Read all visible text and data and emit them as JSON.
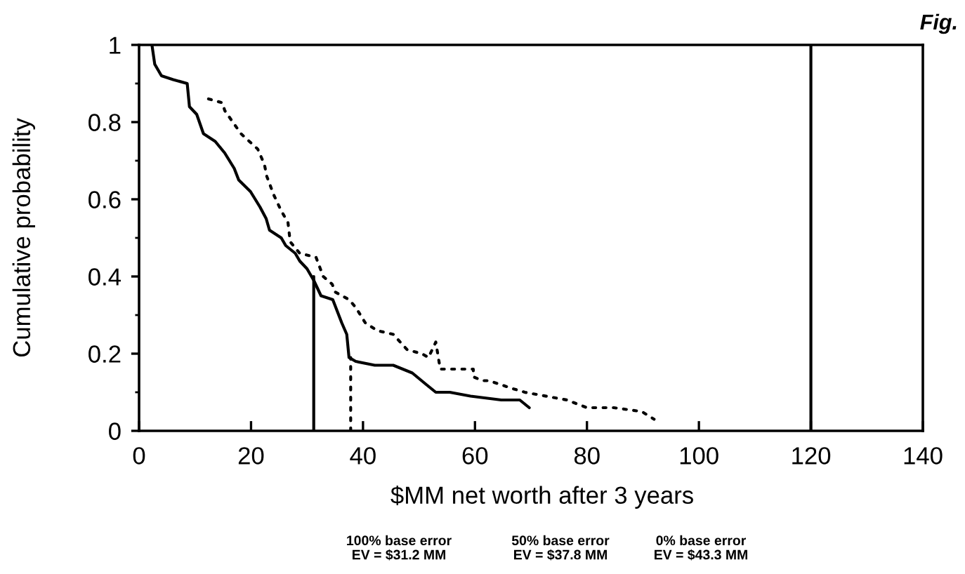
{
  "chart_data": {
    "type": "line",
    "title": "Fig.",
    "xlabel": "$MM net worth after 3 years",
    "ylabel": "Cumulative probability",
    "xlim": [
      0,
      140
    ],
    "ylim": [
      0,
      1
    ],
    "xticks": [
      0,
      20,
      40,
      60,
      80,
      100,
      120,
      140
    ],
    "yticks": [
      0,
      {
        "value": 0.1,
        "label": null
      },
      0.2,
      {
        "value": 0.3,
        "label": null
      },
      0.4,
      {
        "value": 0.5,
        "label": null
      },
      0.6,
      {
        "value": 0.7,
        "label": null
      },
      0.8,
      {
        "value": 0.9,
        "label": null
      },
      1
    ],
    "series": [
      {
        "color": "#000000",
        "line_style": "solid",
        "x": [
          2.3,
          2.8,
          4.0,
          6.1,
          8.6,
          9.0,
          10.3,
          11.5,
          13.6,
          15.3,
          17.0,
          17.8,
          19.9,
          21.6,
          22.7,
          23.3,
          25.4,
          26.2,
          27.9,
          28.7,
          30.0,
          31.2,
          32.5,
          34.6,
          36.2,
          37.1,
          37.5,
          38.7,
          42.1,
          45.4,
          48.8,
          51.3,
          53.0,
          55.5,
          59.2,
          64.7,
          68.0,
          69.7
        ],
        "values": [
          1.0,
          0.95,
          0.92,
          0.91,
          0.9,
          0.84,
          0.82,
          0.77,
          0.75,
          0.72,
          0.68,
          0.65,
          0.62,
          0.58,
          0.55,
          0.52,
          0.5,
          0.48,
          0.46,
          0.44,
          0.42,
          0.39,
          0.35,
          0.34,
          0.28,
          0.25,
          0.19,
          0.18,
          0.17,
          0.17,
          0.15,
          0.12,
          0.1,
          0.1,
          0.09,
          0.08,
          0.08,
          0.06
        ]
      },
      {
        "color": "#000000",
        "line_style": "dotted",
        "x": [
          12.4,
          14.9,
          15.3,
          18.2,
          21.2,
          22.4,
          22.8,
          24.1,
          25.4,
          26.6,
          27.0,
          28.7,
          31.6,
          32.9,
          34.5,
          35.0,
          37.5,
          38.7,
          40.4,
          42.5,
          45.4,
          47.9,
          50.5,
          51.7,
          53.0,
          53.8,
          59.7,
          59.7,
          61.3,
          62.5,
          66.6,
          68.9,
          76.4,
          80.0,
          84.8,
          89.8,
          92.0
        ],
        "values": [
          0.86,
          0.85,
          0.83,
          0.77,
          0.73,
          0.69,
          0.66,
          0.61,
          0.57,
          0.54,
          0.49,
          0.46,
          0.45,
          0.4,
          0.38,
          0.36,
          0.34,
          0.32,
          0.28,
          0.26,
          0.25,
          0.21,
          0.2,
          0.19,
          0.23,
          0.16,
          0.16,
          0.14,
          0.13,
          0.13,
          0.11,
          0.1,
          0.08,
          0.06,
          0.06,
          0.05,
          0.03
        ]
      },
      {
        "color": "#000000",
        "line_style": "solid",
        "x": [
          31.2,
          31.2
        ],
        "values": [
          0,
          0.4
        ]
      },
      {
        "color": "#000000",
        "line_style": "dotted",
        "x": [
          37.8,
          37.8
        ],
        "values": [
          0,
          0.19
        ]
      }
    ],
    "ref_lines": [
      {
        "axis": "x",
        "value": 120,
        "color": "#000000",
        "line_style": "solid"
      }
    ],
    "annotations": [
      "100% base error\nEV = $31.2 MM",
      "50% base error\nEV = $37.8 MM",
      "0% base error\nEV = $43.3 MM"
    ]
  }
}
